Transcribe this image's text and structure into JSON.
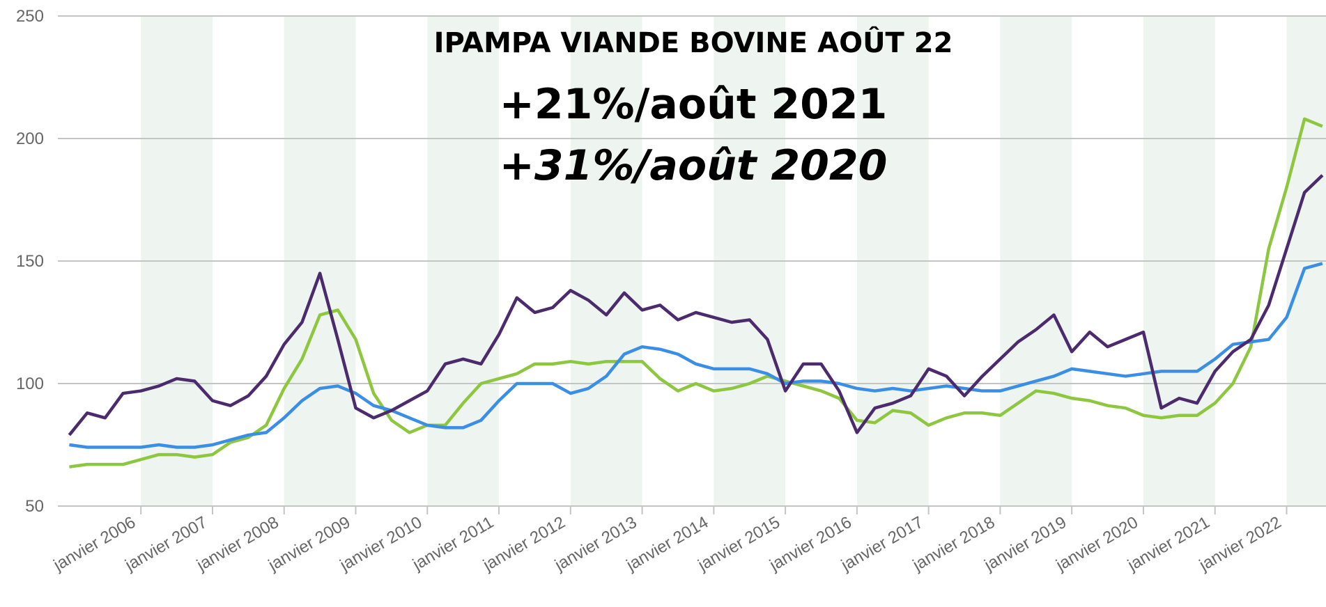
{
  "chart_data": {
    "type": "line",
    "title": "IPAMPA VIANDE BOVINE AOÛT 22",
    "annotations": [
      "+21%/août 2021",
      "+31%/août 2020"
    ],
    "x": [
      2005,
      2005.25,
      2005.5,
      2005.75,
      2006,
      2006.25,
      2006.5,
      2006.75,
      2007,
      2007.25,
      2007.5,
      2007.75,
      2008,
      2008.25,
      2008.5,
      2008.75,
      2009,
      2009.25,
      2009.5,
      2009.75,
      2010,
      2010.25,
      2010.5,
      2010.75,
      2011,
      2011.25,
      2011.5,
      2011.75,
      2012,
      2012.25,
      2012.5,
      2012.75,
      2013,
      2013.25,
      2013.5,
      2013.75,
      2014,
      2014.25,
      2014.5,
      2014.75,
      2015,
      2015.25,
      2015.5,
      2015.75,
      2016,
      2016.25,
      2016.5,
      2016.75,
      2017,
      2017.25,
      2017.5,
      2017.75,
      2018,
      2018.25,
      2018.5,
      2018.75,
      2019,
      2019.25,
      2019.5,
      2019.75,
      2020,
      2020.25,
      2020.5,
      2020.75,
      2021,
      2021.25,
      2021.5,
      2021.75,
      2022,
      2022.25,
      2022.5
    ],
    "series": [
      {
        "color": "#8dc63f",
        "values": [
          66,
          67,
          67,
          67,
          69,
          71,
          71,
          70,
          71,
          76,
          78,
          83,
          98,
          110,
          128,
          130,
          118,
          96,
          85,
          80,
          83,
          83,
          92,
          100,
          102,
          104,
          108,
          108,
          109,
          108,
          109,
          109,
          109,
          102,
          97,
          100,
          97,
          98,
          100,
          103,
          101,
          99,
          97,
          94,
          85,
          84,
          89,
          88,
          83,
          86,
          88,
          88,
          87,
          92,
          97,
          96,
          94,
          93,
          91,
          90,
          87,
          86,
          87,
          87,
          92,
          100,
          115,
          155,
          180,
          208,
          205
        ]
      },
      {
        "color": "#3a8ee6",
        "values": [
          75,
          74,
          74,
          74,
          74,
          75,
          74,
          74,
          75,
          77,
          79,
          80,
          86,
          93,
          98,
          99,
          96,
          91,
          89,
          86,
          83,
          82,
          82,
          85,
          93,
          100,
          100,
          100,
          96,
          98,
          103,
          112,
          115,
          114,
          112,
          108,
          106,
          106,
          106,
          104,
          100,
          101,
          101,
          100,
          98,
          97,
          98,
          97,
          98,
          99,
          98,
          97,
          97,
          99,
          101,
          103,
          106,
          105,
          104,
          103,
          104,
          105,
          105,
          105,
          110,
          116,
          117,
          118,
          127,
          147,
          149
        ]
      },
      {
        "color": "#4b2a6e",
        "values": [
          79,
          88,
          86,
          96,
          97,
          99,
          102,
          101,
          93,
          91,
          95,
          103,
          116,
          125,
          145,
          118,
          90,
          86,
          89,
          93,
          97,
          108,
          110,
          108,
          120,
          135,
          129,
          131,
          138,
          134,
          128,
          137,
          130,
          132,
          126,
          129,
          127,
          125,
          126,
          118,
          97,
          108,
          108,
          97,
          80,
          90,
          92,
          95,
          106,
          103,
          95,
          103,
          110,
          117,
          122,
          128,
          113,
          121,
          115,
          118,
          121,
          90,
          94,
          92,
          105,
          113,
          118,
          132,
          155,
          178,
          185
        ]
      }
    ],
    "xlim": [
      2004.84,
      2022.55
    ],
    "xticks": [
      {
        "value": 2006,
        "label": "janvier 2006"
      },
      {
        "value": 2007,
        "label": "janvier 2007"
      },
      {
        "value": 2008,
        "label": "janvier 2008"
      },
      {
        "value": 2009,
        "label": "janvier 2009"
      },
      {
        "value": 2010,
        "label": "janvier 2010"
      },
      {
        "value": 2011,
        "label": "janvier 2011"
      },
      {
        "value": 2012,
        "label": "janvier 2012"
      },
      {
        "value": 2013,
        "label": "janvier 2013"
      },
      {
        "value": 2014,
        "label": "janvier 2014"
      },
      {
        "value": 2015,
        "label": "janvier 2015"
      },
      {
        "value": 2016,
        "label": "janvier 2016"
      },
      {
        "value": 2017,
        "label": "janvier 2017"
      },
      {
        "value": 2018,
        "label": "janvier 2018"
      },
      {
        "value": 2019,
        "label": "janvier 2019"
      },
      {
        "value": 2020,
        "label": "janvier 2020"
      },
      {
        "value": 2021,
        "label": "janvier 2021"
      },
      {
        "value": 2022,
        "label": "janvier 2022"
      }
    ],
    "ylim": [
      50,
      250
    ],
    "yticks": [
      50,
      100,
      150,
      200,
      250
    ],
    "grid": true
  }
}
